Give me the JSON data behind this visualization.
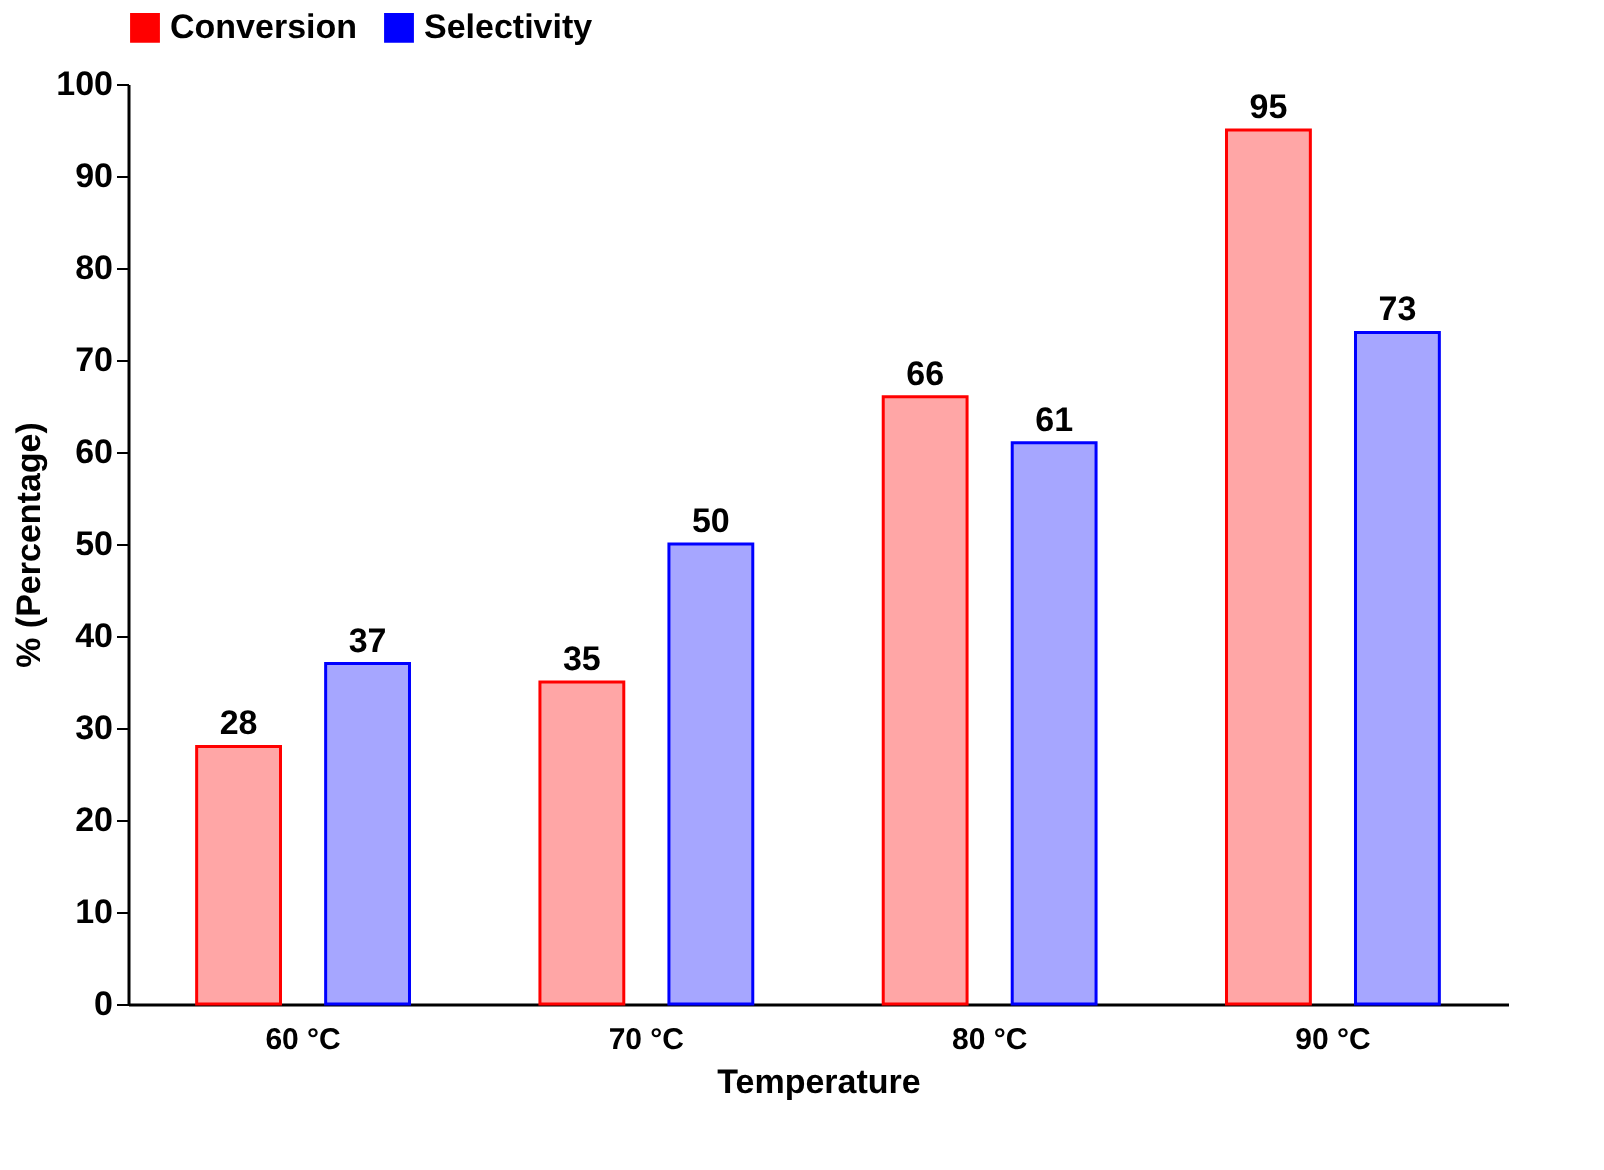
{
  "chart_data": {
    "type": "bar",
    "xlabel": "Temperature",
    "ylabel": "% (Percentage)",
    "categories": [
      "60 °C",
      "70 °C",
      "80 °C",
      "90 °C"
    ],
    "series": [
      {
        "name": "Conversion",
        "color": "#ff0000",
        "values": [
          28,
          35,
          66,
          95
        ]
      },
      {
        "name": "Selectivity",
        "color": "#0000ff",
        "values": [
          37,
          50,
          61,
          73
        ]
      }
    ],
    "ylim": [
      0,
      100
    ],
    "yticks": [
      0,
      10,
      20,
      30,
      40,
      50,
      60,
      70,
      80,
      90,
      100
    ],
    "grid": false,
    "legend": "top",
    "data_labels": true
  }
}
